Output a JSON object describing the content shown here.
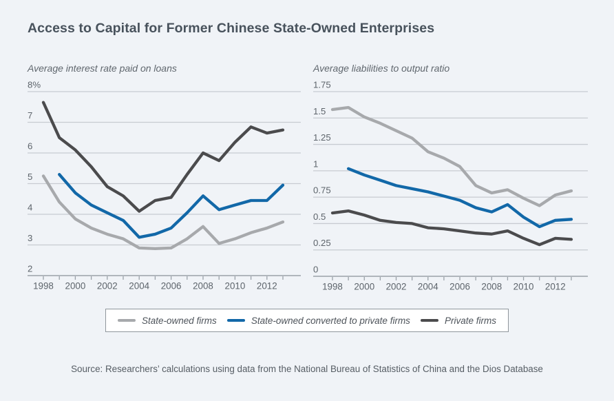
{
  "page": {
    "title": "Access to Capital for Former Chinese State-Owned Enterprises",
    "source": "Source: Researchers’ calculations using data from the National Bureau of Statistics of China and the Dios Database"
  },
  "colors": {
    "background": "#f0f3f7",
    "title": "#48525c",
    "subtitle": "#60676e",
    "axis_line": "#9aa1a8",
    "gridline": "#c7cbd1",
    "tick_label": "#5d646b",
    "legend_border": "#8f969c",
    "legend_bg": "#ffffff",
    "state_owned": "#a7a9ac",
    "converted": "#1268a8",
    "private": "#4b4b4d"
  },
  "legend": {
    "items": [
      {
        "label": "State-owned firms",
        "series": "state_owned"
      },
      {
        "label": "State-owned converted to private firms",
        "series": "converted"
      },
      {
        "label": "Private firms",
        "series": "private"
      }
    ]
  },
  "chart_data": [
    {
      "type": "line",
      "title": "Average interest rate paid on loans",
      "x": [
        1998,
        1999,
        2000,
        2001,
        2002,
        2003,
        2004,
        2005,
        2006,
        2007,
        2008,
        2009,
        2010,
        2011,
        2012,
        2013
      ],
      "x_tick_labels": [
        "1998",
        "2000",
        "2002",
        "2004",
        "2006",
        "2008",
        "2010",
        "2012"
      ],
      "ylim": [
        2,
        8
      ],
      "y_ticks": [
        8,
        7,
        6,
        5,
        4,
        3,
        2
      ],
      "y_tick_labels": [
        "8%",
        "7",
        "6",
        "5",
        "4",
        "3",
        "2"
      ],
      "grid": true,
      "series": [
        {
          "name": "State-owned firms",
          "color_key": "state_owned",
          "values": [
            5.25,
            4.4,
            3.85,
            3.55,
            3.35,
            3.2,
            2.9,
            2.88,
            2.9,
            3.2,
            3.6,
            3.05,
            3.2,
            3.4,
            3.55,
            3.75
          ]
        },
        {
          "name": "State-owned converted to private firms",
          "color_key": "converted",
          "values": [
            null,
            5.3,
            4.7,
            4.3,
            4.05,
            3.8,
            3.25,
            3.35,
            3.55,
            4.05,
            4.6,
            4.15,
            4.3,
            4.45,
            4.45,
            4.95
          ]
        },
        {
          "name": "Private firms",
          "color_key": "private",
          "values": [
            7.65,
            6.5,
            6.1,
            5.55,
            4.9,
            4.6,
            4.1,
            4.45,
            4.55,
            5.3,
            6.0,
            5.75,
            6.35,
            6.85,
            6.65,
            6.75
          ]
        }
      ]
    },
    {
      "type": "line",
      "title": "Average liabilities to output ratio",
      "x": [
        1998,
        1999,
        2000,
        2001,
        2002,
        2003,
        2004,
        2005,
        2006,
        2007,
        2008,
        2009,
        2010,
        2011,
        2012,
        2013
      ],
      "x_tick_labels": [
        "1998",
        "2000",
        "2002",
        "2004",
        "2006",
        "2008",
        "2010",
        "2012"
      ],
      "ylim": [
        0,
        1.75
      ],
      "y_ticks": [
        1.75,
        1.5,
        1.25,
        1,
        0.75,
        0.5,
        0.25,
        0
      ],
      "y_tick_labels": [
        "1.75",
        "1.5",
        "1.25",
        "1",
        "0.75",
        "0.5",
        "0.25",
        "0"
      ],
      "grid": true,
      "series": [
        {
          "name": "State-owned firms",
          "color_key": "state_owned",
          "values": [
            1.58,
            1.6,
            1.51,
            1.45,
            1.38,
            1.31,
            1.18,
            1.12,
            1.04,
            0.86,
            0.79,
            0.82,
            0.74,
            0.67,
            0.77,
            0.81
          ]
        },
        {
          "name": "State-owned converted to private firms",
          "color_key": "converted",
          "values": [
            null,
            1.02,
            0.96,
            0.91,
            0.86,
            0.83,
            0.8,
            0.76,
            0.72,
            0.65,
            0.61,
            0.68,
            0.56,
            0.47,
            0.53,
            0.54
          ]
        },
        {
          "name": "Private firms",
          "color_key": "private",
          "values": [
            0.6,
            0.62,
            0.58,
            0.53,
            0.51,
            0.5,
            0.46,
            0.45,
            0.43,
            0.41,
            0.4,
            0.43,
            0.36,
            0.3,
            0.36,
            0.35
          ]
        }
      ]
    }
  ]
}
